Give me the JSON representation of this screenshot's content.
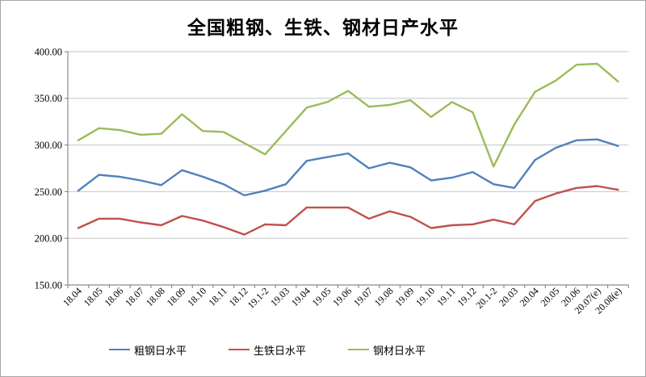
{
  "title": "全国粗钢、生铁、钢材日产水平",
  "colors": {
    "crude_steel": "#4F81BD",
    "pig_iron": "#C0504D",
    "steel_products": "#9BBB59",
    "gridline": "#c6c6c6",
    "axis": "#8c8c8c",
    "text": "#000000"
  },
  "chart_data": {
    "type": "line",
    "title": "全国粗钢、生铁、钢材日产水平",
    "categories": [
      "18.04",
      "18.05",
      "18.06",
      "18.07",
      "18.08",
      "18.09",
      "18.10",
      "18.11",
      "18.12",
      "19.1-2",
      "19.03",
      "19.04",
      "19.05",
      "19.06",
      "19.07",
      "19.08",
      "19.09",
      "19.10",
      "19.11",
      "19.12",
      "20.1-2",
      "20.03",
      "20.04",
      "20.05",
      "20.06",
      "20.07(e)",
      "20.08(e)"
    ],
    "series": [
      {
        "name": "粗钢日水平",
        "color": "#4F81BD",
        "values": [
          251,
          268,
          266,
          262,
          257,
          273,
          266,
          258,
          246,
          251,
          258,
          283,
          287,
          291,
          275,
          281,
          276,
          262,
          265,
          271,
          258,
          254,
          284,
          297,
          305,
          306,
          299
        ]
      },
      {
        "name": "生铁日水平",
        "color": "#C0504D",
        "values": [
          211,
          221,
          221,
          217,
          214,
          224,
          219,
          212,
          204,
          215,
          214,
          233,
          233,
          233,
          221,
          229,
          223,
          211,
          214,
          215,
          220,
          215,
          240,
          248,
          254,
          256,
          252
        ]
      },
      {
        "name": "钢材日水平",
        "color": "#9BBB59",
        "values": [
          305,
          318,
          316,
          311,
          312,
          333,
          315,
          314,
          302,
          290,
          315,
          340,
          346,
          358,
          341,
          343,
          348,
          330,
          346,
          335,
          277,
          322,
          357,
          369,
          386,
          387,
          368
        ]
      }
    ],
    "ylim": [
      150,
      400
    ],
    "ytick_step": 50,
    "ytick_labels": [
      "150.00",
      "200.00",
      "250.00",
      "300.00",
      "350.00",
      "400.00"
    ],
    "grid": true,
    "x_label_rotation": -45,
    "legend_position": "bottom"
  }
}
